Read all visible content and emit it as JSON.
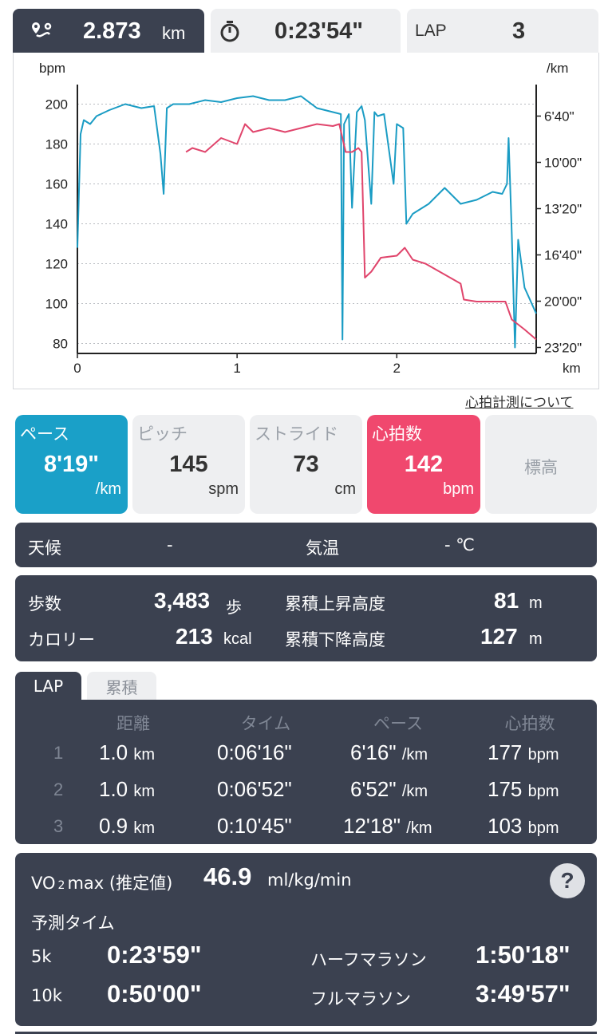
{
  "header": {
    "distance_value": "2.873",
    "distance_unit": "km",
    "time_value": "0:23'54\"",
    "lap_label": "LAP",
    "lap_value": "3",
    "icons": [
      "route-pin-icon",
      "stopwatch-icon"
    ]
  },
  "chart_data": {
    "type": "line",
    "left_axis_label": "bpm",
    "right_axis_label": "/km",
    "x_unit_label": "km",
    "x_ticks": [
      "0",
      "1",
      "2"
    ],
    "left_ticks": [
      "200",
      "180",
      "160",
      "140",
      "120",
      "100",
      "80"
    ],
    "right_ticks": [
      "6'40\"",
      "10'00\"",
      "13'20\"",
      "16'40\"",
      "20'00\"",
      "23'20\""
    ],
    "xlim": [
      0,
      2.873
    ],
    "ylim_left": [
      75,
      205
    ],
    "grid": true,
    "colors": {
      "heart_rate": "#1a9cc4",
      "pace": "#e0456c"
    },
    "series": [
      {
        "key": "heart_rate",
        "axis": "left",
        "x": [
          0,
          0.02,
          0.04,
          0.08,
          0.12,
          0.2,
          0.3,
          0.4,
          0.48,
          0.52,
          0.54,
          0.56,
          0.6,
          0.7,
          0.8,
          0.9,
          1.0,
          1.1,
          1.2,
          1.3,
          1.4,
          1.5,
          1.6,
          1.65,
          1.66,
          1.67,
          1.7,
          1.72,
          1.75,
          1.78,
          1.8,
          1.84,
          1.86,
          1.88,
          1.92,
          1.98,
          2.0,
          2.04,
          2.06,
          2.1,
          2.2,
          2.3,
          2.4,
          2.5,
          2.6,
          2.66,
          2.69,
          2.7,
          2.72,
          2.74,
          2.76,
          2.8,
          2.873
        ],
        "y": [
          128,
          185,
          192,
          190,
          194,
          197,
          200,
          198,
          199,
          175,
          155,
          198,
          200,
          200,
          202,
          201,
          203,
          204,
          202,
          202,
          204,
          198,
          196,
          195,
          82,
          190,
          195,
          148,
          196,
          199,
          192,
          150,
          196,
          194,
          195,
          160,
          190,
          188,
          140,
          145,
          150,
          158,
          150,
          152,
          156,
          155,
          160,
          183,
          135,
          78,
          132,
          108,
          95
        ]
      },
      {
        "key": "pace",
        "axis": "right",
        "x": [
          0.68,
          0.72,
          0.8,
          0.9,
          1.0,
          1.05,
          1.1,
          1.15,
          1.2,
          1.3,
          1.4,
          1.5,
          1.6,
          1.64,
          1.68,
          1.72,
          1.76,
          1.78,
          1.8,
          1.84,
          1.9,
          2.0,
          2.05,
          2.1,
          2.18,
          2.4,
          2.42,
          2.5,
          2.6,
          2.68,
          2.72,
          2.8,
          2.873
        ],
        "y": [
          176,
          178,
          176,
          183,
          180,
          190,
          186,
          187,
          188,
          186,
          188,
          190,
          189,
          190,
          176,
          176,
          178,
          176,
          113,
          116,
          123,
          124,
          128,
          122,
          120,
          110,
          102,
          101,
          101,
          101,
          92,
          87,
          82
        ]
      }
    ]
  },
  "about_link": "心拍計測について",
  "metrics": [
    {
      "label": "ペース",
      "value": "8'19\"",
      "unit": "/km",
      "state": "blue"
    },
    {
      "label": "ピッチ",
      "value": "145",
      "unit": "spm",
      "state": "normal"
    },
    {
      "label": "ストライド",
      "value": "73",
      "unit": "cm",
      "state": "normal"
    },
    {
      "label": "心拍数",
      "value": "142",
      "unit": "bpm",
      "state": "pink"
    },
    {
      "label": "標高",
      "value": "",
      "unit": "",
      "state": "center"
    }
  ],
  "weather": {
    "label": "天候",
    "value": "-",
    "temp_label": "気温",
    "temp_value": "- ℃"
  },
  "stats": {
    "steps_label": "歩数",
    "steps_value": "3,483",
    "steps_unit": "歩",
    "calorie_label": "カロリー",
    "calorie_value": "213",
    "calorie_unit": "kcal",
    "ascent_label": "累積上昇高度",
    "ascent_value": "81",
    "ascent_unit": "m",
    "descent_label": "累積下降高度",
    "descent_value": "127",
    "descent_unit": "m"
  },
  "tabs": {
    "lap": "LAP",
    "total": "累積"
  },
  "laps": {
    "headers": {
      "distance": "距離",
      "time": "タイム",
      "pace": "ペース",
      "hr": "心拍数"
    },
    "rows": [
      {
        "idx": "1",
        "dist": "1.0",
        "dist_unit": "km",
        "time": "0:06'16\"",
        "pace": "6'16\"",
        "pace_unit": "/km",
        "hr": "177",
        "hr_unit": "bpm"
      },
      {
        "idx": "2",
        "dist": "1.0",
        "dist_unit": "km",
        "time": "0:06'52\"",
        "pace": "6'52\"",
        "pace_unit": "/km",
        "hr": "175",
        "hr_unit": "bpm"
      },
      {
        "idx": "3",
        "dist": "0.9",
        "dist_unit": "km",
        "time": "0:10'45\"",
        "pace": "12'18\"",
        "pace_unit": "/km",
        "hr": "103",
        "hr_unit": "bpm"
      }
    ]
  },
  "vo2": {
    "label_prefix": "VO",
    "label_sub": "2",
    "label_suffix": "max (推定値)",
    "value": "46.9",
    "unit": "ml/kg/min",
    "help": "?",
    "predict_title": "予測タイム",
    "k5_label": "5k",
    "k5_value": "0:23'59\"",
    "k10_label": "10k",
    "k10_value": "0:50'00\"",
    "half_label": "ハーフマラソン",
    "half_value": "1:50'18\"",
    "full_label": "フルマラソン",
    "full_value": "3:49'57\""
  }
}
